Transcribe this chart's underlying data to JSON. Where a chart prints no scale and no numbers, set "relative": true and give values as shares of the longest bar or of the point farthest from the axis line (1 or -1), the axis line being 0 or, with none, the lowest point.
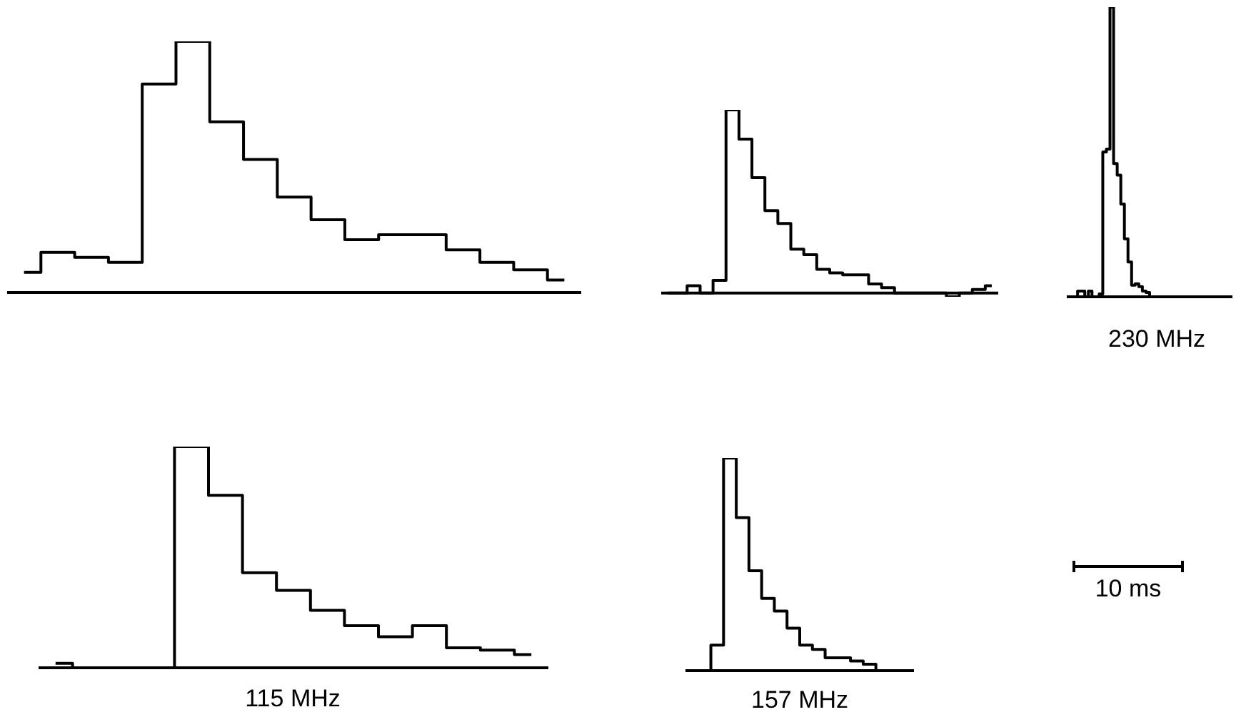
{
  "chart_data": [
    {
      "type": "step",
      "relative": true,
      "categories": [
        null,
        null,
        null,
        null,
        null,
        null,
        null,
        null,
        null,
        null,
        null,
        null,
        null,
        null,
        null,
        null,
        null
      ],
      "series": [
        {
          "color": "#000000",
          "values": [
            0.08,
            0.16,
            0.14,
            0.12,
            0.83,
            1,
            0.68,
            0.53,
            0.38,
            0.29,
            0.21,
            0.23,
            0.23,
            0.17,
            0.12,
            0.09,
            0.05
          ]
        }
      ]
    },
    {
      "type": "step",
      "relative": true,
      "categories": [
        null,
        null,
        null,
        null,
        null,
        null,
        null,
        null,
        null,
        null,
        null,
        null,
        null,
        null,
        null,
        null,
        null,
        null,
        null,
        null,
        null,
        null,
        null,
        null,
        null,
        null
      ],
      "series": [
        {
          "color": "#000000",
          "values": [
            0,
            0,
            0.04,
            0,
            0.07,
            1,
            0.84,
            0.63,
            0.45,
            0.38,
            0.24,
            0.21,
            0.13,
            0.11,
            0.1,
            0.1,
            0.05,
            0.03,
            0,
            0,
            0,
            0,
            -0.02,
            0,
            0.02,
            0.04
          ]
        }
      ]
    },
    {
      "type": "step",
      "relative": true,
      "xlabel": "230 MHz",
      "categories": [
        null,
        null,
        null,
        null,
        null,
        null,
        null,
        null,
        null,
        null,
        null,
        null,
        null,
        null,
        null,
        null,
        null,
        null,
        null,
        null,
        null,
        null,
        null,
        null,
        null,
        null,
        null,
        null,
        null,
        null,
        null,
        null,
        null,
        null,
        null,
        null,
        null,
        null,
        null,
        null,
        null,
        null,
        null,
        null,
        null,
        null
      ],
      "series": [
        {
          "color": "#000000",
          "values": [
            0,
            0,
            0,
            0.02,
            0.02,
            0,
            0.02,
            0,
            0,
            0.01,
            0.5,
            0.51,
            1,
            0.46,
            0.42,
            0.32,
            0.2,
            0.12,
            0.04,
            0.045,
            0.035,
            0.02,
            0.015,
            0,
            0,
            0,
            0,
            0,
            0,
            0,
            0,
            0,
            0,
            0,
            0,
            0,
            0,
            0,
            0,
            0,
            0,
            0,
            0,
            0,
            0,
            0
          ]
        }
      ]
    },
    {
      "type": "step",
      "relative": true,
      "xlabel": "115 MHz",
      "categories": [
        null,
        null,
        null,
        null,
        null,
        null,
        null,
        null,
        null,
        null,
        null,
        null,
        null,
        null,
        null
      ],
      "series": [
        {
          "color": "#000000",
          "values": [
            0.02,
            0,
            0,
            0,
            1,
            0.78,
            0.43,
            0.35,
            0.26,
            0.19,
            0.14,
            0.19,
            0.09,
            0.08,
            0.06
          ]
        }
      ]
    },
    {
      "type": "step",
      "relative": true,
      "xlabel": "157 MHz",
      "annotations": [
        "10 ms"
      ],
      "categories": [
        null,
        null,
        null,
        null,
        null,
        null,
        null,
        null,
        null,
        null,
        null,
        null,
        null,
        null,
        null,
        null,
        null,
        null
      ],
      "series": [
        {
          "color": "#000000",
          "values": [
            0,
            0,
            0.12,
            1,
            0.72,
            0.47,
            0.34,
            0.28,
            0.2,
            0.12,
            0.1,
            0.06,
            0.06,
            0.045,
            0.03,
            0,
            0,
            0
          ]
        }
      ]
    }
  ]
}
